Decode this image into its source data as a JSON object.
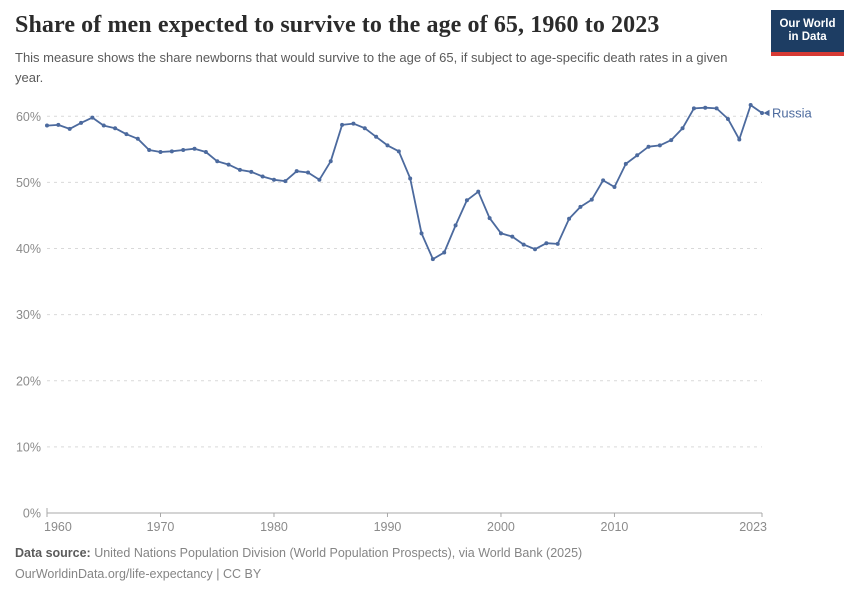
{
  "header": {
    "title": "Share of men expected to survive to the age of 65, 1960 to 2023",
    "subtitle": "This measure shows the share newborns that would survive to the age of 65, if subject to age-specific death rates in a given year.",
    "logo": {
      "line1": "Our World",
      "line2": "in Data"
    }
  },
  "chart_data": {
    "type": "line",
    "title": "Share of men expected to survive to the age of 65, 1960 to 2023",
    "xlabel": "",
    "ylabel": "",
    "xlim": [
      1960,
      2023
    ],
    "ylim": [
      0,
      60
    ],
    "grid": "horizontal-dashed",
    "legend": "end-of-line-label",
    "xticks": [
      1960,
      1970,
      1980,
      1990,
      2000,
      2010,
      2023
    ],
    "xtick_labels": [
      "1960",
      "1970",
      "1980",
      "1990",
      "2000",
      "2010",
      "2023"
    ],
    "yticks": [
      0,
      10,
      20,
      30,
      40,
      50,
      60
    ],
    "ytick_labels": [
      "0%",
      "10%",
      "20%",
      "30%",
      "40%",
      "50%",
      "60%"
    ],
    "series": [
      {
        "name": "Russia",
        "color": "#4c6a9e",
        "x_start": 1960,
        "x_step": 1,
        "values": [
          58.6,
          58.7,
          58.1,
          59.0,
          59.8,
          58.6,
          58.2,
          57.3,
          56.6,
          54.9,
          54.6,
          54.7,
          54.9,
          55.1,
          54.6,
          53.2,
          52.7,
          51.9,
          51.6,
          50.9,
          50.4,
          50.2,
          51.7,
          51.5,
          50.4,
          53.2,
          58.7,
          58.9,
          58.2,
          56.9,
          55.6,
          54.7,
          50.6,
          42.3,
          38.4,
          39.4,
          43.5,
          47.3,
          48.6,
          44.6,
          42.3,
          41.8,
          40.6,
          39.9,
          40.8,
          40.7,
          44.5,
          46.3,
          47.4,
          50.3,
          49.3,
          52.8,
          54.1,
          55.4,
          55.6,
          56.4,
          58.2,
          61.2,
          61.3,
          61.2,
          59.6,
          56.5,
          61.7,
          60.5
        ]
      }
    ]
  },
  "axis_colors": {
    "grid": "#d9d9d9",
    "axis": "#a8a8a8",
    "tick_label": "#8b8b8b"
  },
  "footer": {
    "data_source_label": "Data source:",
    "data_source_text": " United Nations Population Division (World Population Prospects), via World Bank (2025)",
    "citation": "OurWorldinData.org/life-expectancy | CC BY"
  }
}
